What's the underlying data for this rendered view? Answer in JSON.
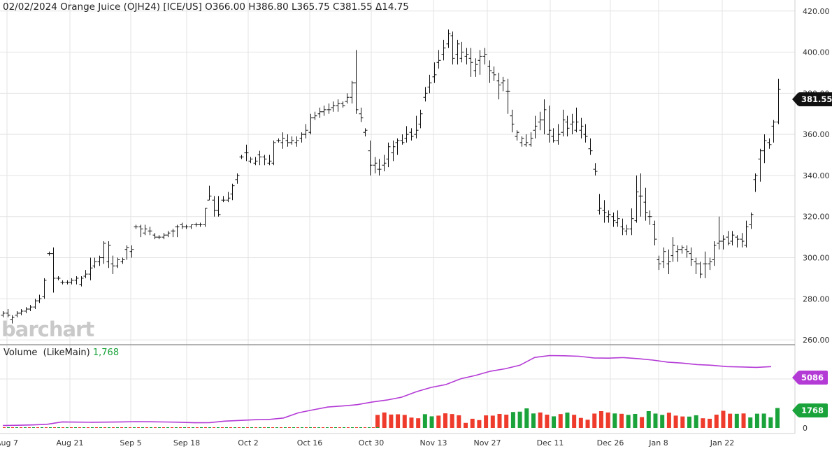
{
  "header": {
    "date": "02/02/2024",
    "name": "Orange Juice (OJH24) [ICE/US]",
    "open": "O366.00",
    "high": "H386.80",
    "low": "L365.75",
    "close": "C381.55",
    "change": "Δ14.75"
  },
  "volume_header": {
    "label": "Volume",
    "study": "(LikeMain)",
    "value": "1,768"
  },
  "badges": {
    "price": "381.55",
    "avg_volume": "5086",
    "volume": "1768"
  },
  "logo": "barchart",
  "colors": {
    "bar": "#111111",
    "volume_up": "#1aa33a",
    "volume_down": "#ee3b2c",
    "average_line": "#b43ad6",
    "price_badge": "#111111",
    "avg_badge": "#b43ad6",
    "volume_badge": "#1aa33a",
    "grid": "#e3e3e3"
  },
  "chart_data": {
    "type": "ohlc",
    "price_axis": {
      "ticks": [
        "420.00",
        "400.00",
        "380.00",
        "360.00",
        "340.00",
        "320.00",
        "300.00",
        "280.00",
        "260.00"
      ],
      "ylim": [
        258,
        424
      ]
    },
    "volume_axis": {
      "ticks": [
        "0"
      ]
    },
    "x_labels": [
      "Aug 7",
      "Aug 21",
      "Sep 5",
      "Sep 18",
      "Oct 2",
      "Oct 16",
      "Oct 30",
      "Nov 13",
      "Nov 27",
      "Dec 11",
      "Dec 26",
      "Jan 8",
      "Jan 22"
    ],
    "bars": [
      [
        272,
        274,
        271,
        273
      ],
      [
        273,
        275,
        271,
        272
      ],
      [
        270,
        272,
        268,
        271
      ],
      [
        272,
        274,
        271,
        273
      ],
      [
        273,
        275,
        272,
        274
      ],
      [
        274,
        276,
        273,
        275
      ],
      [
        275,
        277,
        274,
        276
      ],
      [
        276,
        280,
        275,
        279
      ],
      [
        279,
        282,
        278,
        280
      ],
      [
        281,
        290,
        280,
        289
      ],
      [
        302,
        303,
        301,
        302
      ],
      [
        302,
        305,
        283,
        290
      ],
      [
        290,
        291,
        289,
        290
      ],
      [
        288,
        289,
        287,
        288
      ],
      [
        288,
        289,
        287,
        288
      ],
      [
        288,
        290,
        287,
        289
      ],
      [
        289,
        291,
        287,
        290
      ],
      [
        287,
        291,
        286,
        290
      ],
      [
        291,
        294,
        290,
        292
      ],
      [
        292,
        300,
        289,
        295
      ],
      [
        296,
        300,
        295,
        298
      ],
      [
        298,
        301,
        296,
        300
      ],
      [
        300,
        308,
        297,
        307
      ],
      [
        298,
        308,
        295,
        306
      ],
      [
        297,
        301,
        292,
        296
      ],
      [
        296,
        300,
        295,
        299
      ],
      [
        298,
        300,
        297,
        299
      ],
      [
        304,
        306,
        299,
        305
      ],
      [
        303,
        306,
        300,
        304
      ],
      [
        315,
        316,
        314,
        315
      ],
      [
        315,
        316,
        310,
        314
      ],
      [
        312,
        316,
        311,
        314
      ],
      [
        313,
        315,
        311,
        313
      ],
      [
        311,
        312,
        309,
        310
      ],
      [
        310,
        311,
        309,
        310
      ],
      [
        310,
        312,
        309,
        311
      ],
      [
        311,
        313,
        310,
        312
      ],
      [
        313,
        314,
        310,
        313
      ],
      [
        315,
        316,
        310,
        315
      ],
      [
        316,
        317,
        314,
        315
      ],
      [
        315,
        316,
        314,
        315
      ],
      [
        315,
        316,
        314,
        316
      ],
      [
        316,
        317,
        315,
        316
      ],
      [
        316,
        317,
        315,
        316
      ],
      [
        316,
        324,
        315,
        324
      ],
      [
        328,
        335,
        328,
        330
      ],
      [
        328,
        330,
        320,
        323
      ],
      [
        323,
        330,
        320,
        321
      ],
      [
        328,
        330,
        327,
        328
      ],
      [
        328,
        332,
        327,
        329
      ],
      [
        331,
        336,
        328,
        335
      ],
      [
        338,
        341,
        336,
        340
      ],
      [
        349,
        350,
        348,
        349
      ],
      [
        351,
        355,
        347,
        351
      ],
      [
        347,
        349,
        346,
        348
      ],
      [
        346,
        349,
        345,
        347
      ],
      [
        350,
        352,
        345,
        349
      ],
      [
        349,
        350,
        345,
        348
      ],
      [
        346,
        350,
        345,
        347
      ],
      [
        346,
        357,
        345,
        356
      ],
      [
        357,
        358,
        356,
        357
      ],
      [
        356,
        361,
        353,
        358
      ],
      [
        357,
        360,
        354,
        356
      ],
      [
        356,
        359,
        355,
        357
      ],
      [
        356,
        359,
        354,
        357
      ],
      [
        358,
        361,
        356,
        360
      ],
      [
        360,
        365,
        358,
        362
      ],
      [
        361,
        370,
        360,
        368
      ],
      [
        368,
        371,
        367,
        369
      ],
      [
        370,
        373,
        368,
        371
      ],
      [
        371,
        374,
        369,
        372
      ],
      [
        372,
        375,
        370,
        372
      ],
      [
        373,
        376,
        371,
        374
      ],
      [
        374,
        377,
        371,
        375
      ],
      [
        375,
        376,
        373,
        374
      ],
      [
        376,
        380,
        375,
        378
      ],
      [
        378,
        386,
        375,
        385
      ],
      [
        385,
        401,
        370,
        372
      ],
      [
        370,
        373,
        366,
        368
      ],
      [
        361,
        363,
        359,
        362
      ],
      [
        352,
        357,
        340,
        345
      ],
      [
        345,
        349,
        341,
        346
      ],
      [
        343,
        348,
        340,
        343
      ],
      [
        345,
        350,
        342,
        346
      ],
      [
        348,
        356,
        344,
        354
      ],
      [
        351,
        357,
        347,
        354
      ],
      [
        356,
        358,
        350,
        357
      ],
      [
        357,
        360,
        355,
        356
      ],
      [
        358,
        364,
        356,
        360
      ],
      [
        361,
        363,
        357,
        359
      ],
      [
        360,
        369,
        358,
        362
      ],
      [
        365,
        372,
        363,
        370
      ],
      [
        378,
        383,
        376,
        380
      ],
      [
        383,
        389,
        380,
        385
      ],
      [
        388,
        395,
        385,
        389
      ],
      [
        395,
        401,
        392,
        396
      ],
      [
        399,
        406,
        396,
        402
      ],
      [
        404,
        411,
        402,
        409
      ],
      [
        408,
        410,
        394,
        397
      ],
      [
        399,
        406,
        394,
        404
      ],
      [
        397,
        405,
        395,
        400
      ],
      [
        398,
        402,
        394,
        399
      ],
      [
        397,
        402,
        388,
        395
      ],
      [
        391,
        397,
        388,
        394
      ],
      [
        396,
        401,
        389,
        398
      ],
      [
        398,
        402,
        394,
        399
      ],
      [
        393,
        396,
        385,
        391
      ],
      [
        390,
        393,
        386,
        389
      ],
      [
        386,
        390,
        377,
        384
      ],
      [
        385,
        388,
        381,
        386
      ],
      [
        381,
        387,
        370,
        381
      ],
      [
        369,
        372,
        361,
        365
      ],
      [
        359,
        362,
        357,
        361
      ],
      [
        356,
        359,
        354,
        358
      ],
      [
        355,
        360,
        354,
        356
      ],
      [
        355,
        361,
        354,
        358
      ],
      [
        362,
        369,
        358,
        364
      ],
      [
        366,
        371,
        362,
        367
      ],
      [
        367,
        377,
        360,
        372
      ],
      [
        360,
        374,
        356,
        362
      ],
      [
        359,
        363,
        356,
        357
      ],
      [
        357,
        365,
        355,
        360
      ],
      [
        361,
        372,
        359,
        367
      ],
      [
        366,
        369,
        359,
        363
      ],
      [
        365,
        370,
        360,
        366
      ],
      [
        362,
        373,
        361,
        366
      ],
      [
        362,
        368,
        358,
        364
      ],
      [
        360,
        365,
        356,
        359
      ],
      [
        353,
        358,
        350,
        352
      ],
      [
        343,
        346,
        340,
        342
      ],
      [
        323,
        331,
        321,
        324
      ],
      [
        323,
        328,
        317,
        322
      ],
      [
        320,
        323,
        317,
        321
      ],
      [
        320,
        322,
        315,
        318
      ],
      [
        317,
        323,
        315,
        319
      ],
      [
        315,
        319,
        311,
        314
      ],
      [
        313,
        316,
        311,
        314
      ],
      [
        314,
        324,
        311,
        319
      ],
      [
        318,
        340,
        317,
        332
      ],
      [
        330,
        341,
        320,
        330
      ],
      [
        327,
        334,
        318,
        322
      ],
      [
        320,
        323,
        316,
        320
      ],
      [
        316,
        318,
        306,
        309
      ],
      [
        299,
        301,
        294,
        297
      ],
      [
        298,
        305,
        295,
        303
      ],
      [
        297,
        304,
        292,
        298
      ],
      [
        301,
        310,
        298,
        306
      ],
      [
        303,
        306,
        298,
        304
      ],
      [
        304,
        306,
        302,
        305
      ],
      [
        304,
        306,
        300,
        303
      ],
      [
        302,
        305,
        296,
        299
      ],
      [
        298,
        300,
        292,
        297
      ],
      [
        297,
        298,
        290,
        292
      ],
      [
        297,
        303,
        290,
        297
      ],
      [
        297,
        300,
        294,
        298
      ],
      [
        299,
        308,
        296,
        306
      ],
      [
        307,
        320,
        304,
        308
      ],
      [
        308,
        311,
        304,
        309
      ],
      [
        310,
        313,
        306,
        307
      ],
      [
        308,
        313,
        306,
        311
      ],
      [
        310,
        311,
        305,
        309
      ],
      [
        309,
        312,
        305,
        308
      ],
      [
        306,
        318,
        305,
        315
      ],
      [
        316,
        322,
        314,
        321
      ],
      [
        338,
        341,
        332,
        340
      ],
      [
        348,
        353,
        337,
        352
      ],
      [
        352,
        360,
        346,
        357
      ],
      [
        356,
        358,
        353,
        355
      ],
      [
        364,
        367,
        356,
        366
      ],
      [
        366,
        387,
        365,
        382
      ]
    ],
    "volume": {
      "bar_values": [
        1080,
        1280,
        1110,
        1130,
        1080,
        860,
        800,
        1140,
        960,
        1020,
        1210,
        1150,
        1050,
        420,
        760,
        650,
        1040,
        1020,
        1160,
        1100,
        1320,
        1350,
        1620,
        1200,
        1280,
        1100,
        960,
        1150,
        1270,
        1090,
        830,
        680,
        1190,
        1390,
        1280,
        1200,
        1170,
        1080,
        1160,
        900,
        1390,
        1190,
        1080,
        1260,
        1020,
        950,
        940,
        1050,
        800,
        760,
        1100,
        1420,
        1180,
        1170,
        1200,
        870,
        1180,
        1190,
        880,
        1650
      ],
      "bar_dirs": [
        0,
        0,
        0,
        0,
        0,
        0,
        0,
        1,
        1,
        0,
        0,
        0,
        0,
        0,
        0,
        0,
        0,
        0,
        0,
        0,
        1,
        1,
        1,
        1,
        0,
        0,
        1,
        0,
        1,
        0,
        0,
        0,
        0,
        0,
        0,
        1,
        0,
        1,
        1,
        0,
        1,
        1,
        1,
        0,
        0,
        0,
        1,
        1,
        0,
        0,
        0,
        0,
        0,
        1,
        0,
        1,
        1,
        1,
        1,
        1
      ],
      "avg_line": [
        200,
        220,
        250,
        300,
        500,
        480,
        470,
        480,
        500,
        520,
        510,
        490,
        470,
        430,
        440,
        560,
        620,
        680,
        700,
        820,
        1250,
        1500,
        1730,
        1820,
        1930,
        2150,
        2310,
        2550,
        3010,
        3360,
        3600,
        4080,
        4350,
        4700,
        4900,
        5200,
        5840,
        6000,
        5980,
        5940,
        5800,
        5780,
        5830,
        5740,
        5620,
        5450,
        5370,
        5250,
        5190,
        5080,
        5050,
        5020,
        5080
      ]
    }
  }
}
